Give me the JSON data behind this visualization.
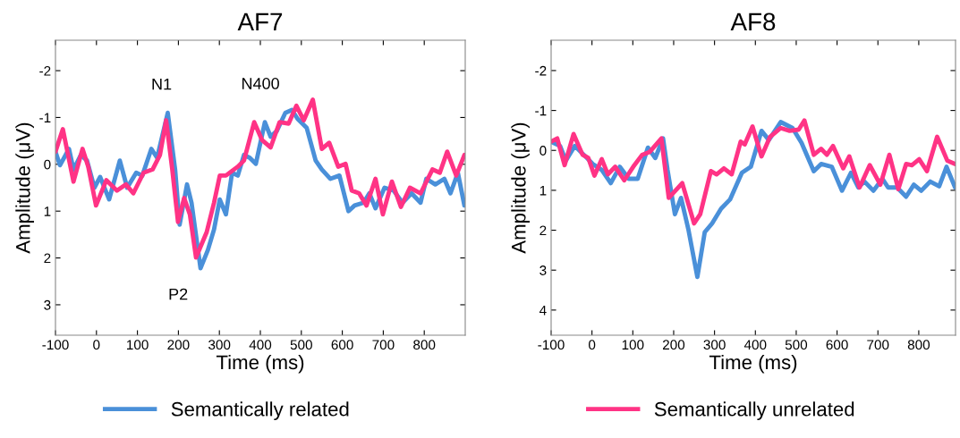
{
  "chart_data": [
    {
      "type": "line",
      "title": "AF7",
      "xlabel": "Time (ms)",
      "ylabel": "Amplitude (μV)",
      "xlim": [
        -100,
        900
      ],
      "ylim": [
        3.65,
        -2.65
      ],
      "xticks": [
        -100,
        0,
        100,
        200,
        300,
        400,
        500,
        600,
        700,
        800
      ],
      "yticks": [
        -2,
        -1,
        0,
        1,
        2,
        3
      ],
      "grid": false,
      "legend": "bottom",
      "marker": "none",
      "line_style": "solid",
      "annotations": [
        {
          "text": "N1",
          "x": 174,
          "y": -1.1
        },
        {
          "text": "P2",
          "x": 254,
          "y": 2.22
        },
        {
          "text": "N400",
          "x": 385,
          "y": -0.9
        }
      ],
      "series": [
        {
          "name": "Semantically related",
          "color": "#4a90d9",
          "x": [
            -100,
            -89,
            -67,
            -56,
            -38,
            -23,
            -5,
            9,
            31,
            57,
            75,
            97,
            112,
            134,
            148,
            174,
            192,
            203,
            221,
            232,
            254,
            272,
            287,
            301,
            316,
            331,
            345,
            360,
            374,
            389,
            411,
            425,
            440,
            461,
            477,
            491,
            513,
            535,
            550,
            571,
            593,
            615,
            630,
            652,
            666,
            681,
            703,
            725,
            747,
            769,
            791,
            805,
            827,
            849,
            864,
            882,
            898
          ],
          "values": [
            -0.27,
            0.02,
            -0.33,
            0.11,
            -0.2,
            -0.08,
            0.5,
            0.27,
            0.75,
            -0.08,
            0.5,
            0.18,
            0.24,
            -0.33,
            -0.14,
            -1.1,
            0.11,
            1.29,
            0.43,
            0.82,
            2.22,
            1.83,
            1.39,
            0.75,
            1.07,
            0.18,
            0.24,
            -0.2,
            -0.14,
            -0.01,
            -0.9,
            -0.59,
            -0.71,
            -1.1,
            -1.16,
            -0.97,
            -0.78,
            -0.08,
            0.11,
            0.31,
            0.24,
            1.0,
            0.88,
            0.82,
            0.62,
            0.94,
            0.5,
            0.56,
            0.82,
            0.62,
            0.82,
            0.31,
            0.43,
            0.31,
            0.62,
            0.18,
            0.88
          ]
        },
        {
          "name": "Semantically unrelated",
          "color": "#ff3385",
          "x": [
            -100,
            -82,
            -56,
            -34,
            -20,
            -1,
            24,
            50,
            72,
            90,
            115,
            137,
            155,
            170,
            185,
            199,
            214,
            228,
            243,
            269,
            287,
            301,
            316,
            345,
            360,
            385,
            404,
            425,
            447,
            469,
            488,
            506,
            528,
            550,
            568,
            590,
            608,
            623,
            641,
            659,
            681,
            699,
            721,
            743,
            765,
            791,
            820,
            838,
            856,
            878,
            898
          ],
          "values": [
            -0.27,
            -0.75,
            0.37,
            -0.33,
            0.05,
            0.88,
            0.34,
            0.56,
            0.43,
            0.62,
            0.18,
            0.11,
            -0.2,
            -0.94,
            0.11,
            1.23,
            0.72,
            1.07,
            1.99,
            1.45,
            0.82,
            0.24,
            0.24,
            0.05,
            -0.08,
            -0.9,
            -0.52,
            -0.36,
            -0.9,
            -0.87,
            -1.25,
            -0.94,
            -1.38,
            -0.33,
            -0.46,
            0.05,
            -0.01,
            0.56,
            0.62,
            0.88,
            0.31,
            1.07,
            0.37,
            0.91,
            0.5,
            0.62,
            0.11,
            0.18,
            -0.27,
            0.24,
            -0.2
          ]
        }
      ]
    },
    {
      "type": "line",
      "title": "AF8",
      "xlabel": "Time (ms)",
      "ylabel": "Amplitude (μV)",
      "xlim": [
        -100,
        890
      ],
      "ylim": [
        4.63,
        -2.76
      ],
      "xticks": [
        -100,
        0,
        100,
        200,
        300,
        400,
        500,
        600,
        700,
        800
      ],
      "yticks": [
        -2,
        -1,
        0,
        1,
        2,
        3,
        4
      ],
      "grid": false,
      "marker": "none",
      "line_style": "solid",
      "series": [
        {
          "name": "Semantically related",
          "color": "#4a90d9",
          "x": [
            -100,
            -78,
            -64,
            -42,
            -20,
            2,
            24,
            46,
            68,
            90,
            112,
            137,
            155,
            174,
            185,
            203,
            218,
            236,
            258,
            276,
            294,
            316,
            338,
            367,
            389,
            415,
            433,
            462,
            491,
            513,
            543,
            561,
            587,
            612,
            634,
            652,
            667,
            689,
            711,
            725,
            747,
            769,
            788,
            806,
            828,
            850,
            868,
            889
          ],
          "values": [
            -0.22,
            -0.11,
            0.26,
            -0.11,
            0.11,
            0.34,
            0.49,
            0.82,
            0.41,
            0.71,
            0.71,
            -0.07,
            0.19,
            -0.3,
            0.49,
            1.6,
            1.19,
            1.98,
            3.17,
            2.05,
            1.83,
            1.46,
            1.23,
            0.56,
            0.41,
            -0.49,
            -0.26,
            -0.71,
            -0.56,
            -0.19,
            0.52,
            0.34,
            0.41,
            1.01,
            0.56,
            0.93,
            0.78,
            1.01,
            0.71,
            0.93,
            0.93,
            1.16,
            0.86,
            1.01,
            0.78,
            0.9,
            0.41,
            0.93
          ]
        },
        {
          "name": "Semantically unrelated",
          "color": "#ff3385",
          "x": [
            -100,
            -85,
            -67,
            -45,
            -23,
            -9,
            6,
            24,
            39,
            57,
            79,
            101,
            123,
            141,
            170,
            188,
            221,
            250,
            265,
            291,
            305,
            323,
            342,
            364,
            374,
            393,
            415,
            436,
            462,
            484,
            506,
            520,
            543,
            561,
            575,
            590,
            615,
            630,
            655,
            680,
            706,
            728,
            750,
            769,
            783,
            801,
            820,
            845,
            870,
            889
          ],
          "values": [
            -0.22,
            -0.3,
            0.37,
            -0.41,
            0.11,
            0.19,
            0.63,
            0.22,
            0.6,
            0.41,
            0.75,
            0.41,
            0.11,
            0.04,
            -0.3,
            1.19,
            0.82,
            1.83,
            1.6,
            0.52,
            0.6,
            0.45,
            0.6,
            -0.22,
            -0.15,
            -0.6,
            0.15,
            -0.34,
            -0.56,
            -0.49,
            -0.52,
            -0.75,
            0.11,
            -0.04,
            0.11,
            -0.11,
            0.45,
            0.15,
            0.93,
            0.37,
            0.86,
            0.11,
            0.97,
            0.34,
            0.37,
            0.22,
            0.52,
            -0.34,
            0.26,
            0.34
          ]
        }
      ]
    }
  ]
}
